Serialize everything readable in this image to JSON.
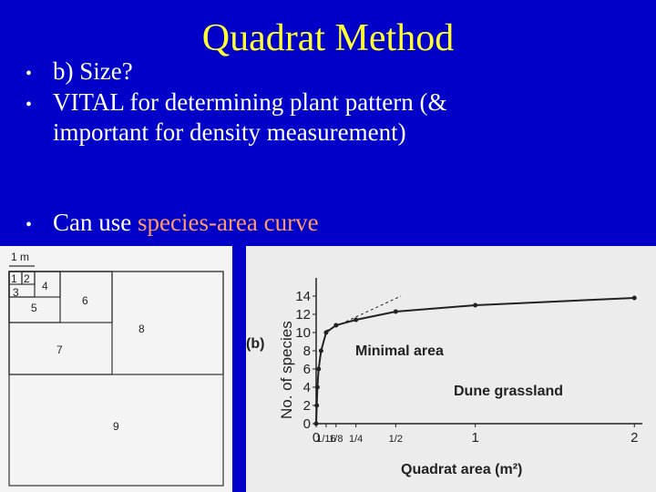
{
  "slide": {
    "title": "Quadrat Method",
    "bullets": [
      {
        "text": "b) Size?"
      },
      {
        "text": "VITAL for determining plant pattern (& important for density measurement)"
      },
      {
        "text": "Can use ",
        "highlight": "species-area curve"
      }
    ]
  },
  "quadrat_diagram": {
    "scale_label": "1 m",
    "labels": [
      "1",
      "2",
      "3",
      "4",
      "5",
      "6",
      "7",
      "8",
      "9"
    ]
  },
  "chart_data": {
    "type": "line",
    "panel_label": "(b)",
    "ylabel": "No. of species",
    "xlabel": "Quadrat area (m²)",
    "annotations": [
      "Minimal area",
      "Dune grassland"
    ],
    "x": [
      0,
      0.0039,
      0.0078,
      0.0156,
      0.031,
      0.0625,
      0.125,
      0.25,
      0.5,
      1,
      2
    ],
    "series": [
      {
        "color": "#222222",
        "values": [
          0,
          2,
          4,
          6,
          8,
          10,
          10.8,
          11.4,
          12.3,
          13,
          13.8
        ]
      }
    ],
    "xlim": [
      0,
      2.05
    ],
    "ylim": [
      0,
      15
    ],
    "xticks": [
      0,
      {
        "value": 0.0625,
        "label": "1/16"
      },
      {
        "value": 0.125,
        "label": "1/8"
      },
      {
        "value": 0.25,
        "label": "1/4"
      },
      {
        "value": 0.5,
        "label": "1/2"
      },
      1,
      2
    ],
    "yticks": [
      0,
      2,
      4,
      6,
      8,
      10,
      12,
      14
    ]
  }
}
